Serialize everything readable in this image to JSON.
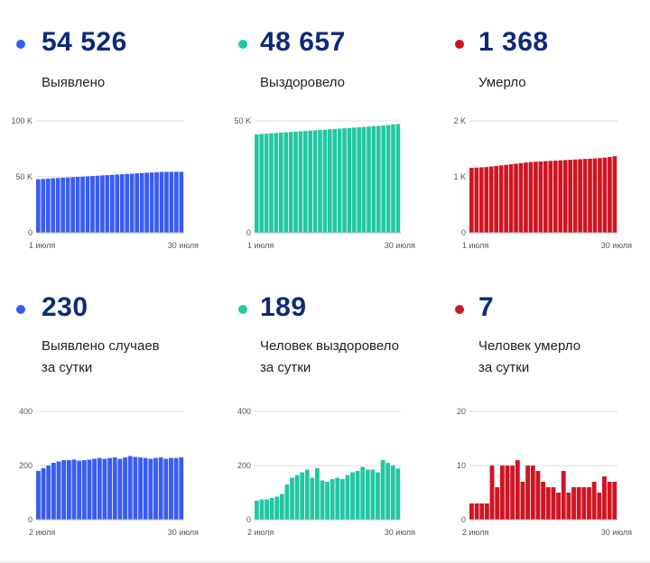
{
  "colors": {
    "blue": "#3a5cf0",
    "green": "#21c7a2",
    "red": "#cf1422",
    "number": "#0c2a7a",
    "grid": "#dddddd"
  },
  "panels": [
    {
      "id": "detected-total",
      "value": "54 526",
      "label_lines": [
        "Выявлено"
      ]
    },
    {
      "id": "recovered-total",
      "value": "48 657",
      "label_lines": [
        "Выздоровело"
      ]
    },
    {
      "id": "died-total",
      "value": "1 368",
      "label_lines": [
        "Умерло"
      ]
    },
    {
      "id": "detected-daily",
      "value": "230",
      "label_lines": [
        "Выявлено случаев",
        "за сутки"
      ]
    },
    {
      "id": "recovered-daily",
      "value": "189",
      "label_lines": [
        "Человек выздоровело",
        "за сутки"
      ]
    },
    {
      "id": "died-daily",
      "value": "7",
      "label_lines": [
        "Человек умерло",
        "за сутки"
      ]
    }
  ],
  "chart_data": [
    {
      "type": "bar",
      "color_key": "blue",
      "ylim": [
        0,
        100000
      ],
      "y_ticks": [
        0,
        50000,
        100000
      ],
      "y_tick_labels": [
        "0",
        "50 K",
        "100 K"
      ],
      "x_start_label": "1 июля",
      "x_end_label": "30 июля",
      "values": [
        47900,
        48160,
        48420,
        48680,
        48940,
        49200,
        49460,
        49720,
        49980,
        50240,
        50500,
        50760,
        51020,
        51280,
        51540,
        51800,
        52060,
        52320,
        52580,
        52840,
        53100,
        53360,
        53620,
        53880,
        54140,
        54400,
        54420,
        54450,
        54490,
        54526
      ]
    },
    {
      "type": "bar",
      "color_key": "green",
      "ylim": [
        0,
        50000
      ],
      "y_ticks": [
        0,
        50000
      ],
      "y_tick_labels": [
        "0",
        "50 K"
      ],
      "x_start_label": "1 июля",
      "x_end_label": "30 июля",
      "values": [
        44000,
        44150,
        44300,
        44450,
        44600,
        44750,
        44900,
        45050,
        45200,
        45350,
        45500,
        45650,
        45800,
        45950,
        46100,
        46250,
        46400,
        46550,
        46700,
        46850,
        47000,
        47150,
        47300,
        47450,
        47600,
        47750,
        47900,
        48100,
        48400,
        48657
      ]
    },
    {
      "type": "bar",
      "color_key": "red",
      "ylim": [
        0,
        2000
      ],
      "y_ticks": [
        0,
        1000,
        2000
      ],
      "y_tick_labels": [
        "0",
        "1 K",
        "2 K"
      ],
      "x_start_label": "1 июля",
      "x_end_label": "30 июля",
      "values": [
        1160,
        1165,
        1170,
        1175,
        1185,
        1195,
        1205,
        1215,
        1225,
        1235,
        1245,
        1255,
        1265,
        1270,
        1275,
        1280,
        1285,
        1290,
        1295,
        1300,
        1305,
        1310,
        1315,
        1320,
        1325,
        1330,
        1335,
        1345,
        1355,
        1368
      ]
    },
    {
      "type": "bar",
      "color_key": "blue",
      "ylim": [
        0,
        400
      ],
      "y_ticks": [
        0,
        200,
        400
      ],
      "y_tick_labels": [
        "0",
        "200",
        "400"
      ],
      "x_start_label": "2 июля",
      "x_end_label": "30 июля",
      "values": [
        180,
        190,
        200,
        210,
        215,
        220,
        220,
        222,
        218,
        220,
        222,
        225,
        228,
        225,
        228,
        230,
        225,
        230,
        235,
        232,
        230,
        228,
        225,
        228,
        230,
        225,
        228,
        228,
        230
      ]
    },
    {
      "type": "bar",
      "color_key": "green",
      "ylim": [
        0,
        400
      ],
      "y_ticks": [
        0,
        200,
        400
      ],
      "y_tick_labels": [
        "0",
        "200",
        "400"
      ],
      "x_start_label": "2 июля",
      "x_end_label": "30 июля",
      "values": [
        70,
        75,
        75,
        80,
        85,
        95,
        130,
        155,
        165,
        175,
        185,
        155,
        190,
        145,
        140,
        150,
        155,
        150,
        165,
        175,
        180,
        195,
        185,
        185,
        175,
        220,
        210,
        200,
        189
      ]
    },
    {
      "type": "bar",
      "color_key": "red",
      "ylim": [
        0,
        20
      ],
      "y_ticks": [
        0,
        10,
        20
      ],
      "y_tick_labels": [
        "0",
        "10",
        "20"
      ],
      "x_start_label": "2 июля",
      "x_end_label": "30 июля",
      "values": [
        3,
        3,
        3,
        3,
        10,
        6,
        10,
        10,
        10,
        11,
        7,
        10,
        10,
        9,
        7,
        6,
        6,
        5,
        9,
        5,
        6,
        6,
        6,
        6,
        7,
        5,
        8,
        7,
        7
      ]
    }
  ]
}
